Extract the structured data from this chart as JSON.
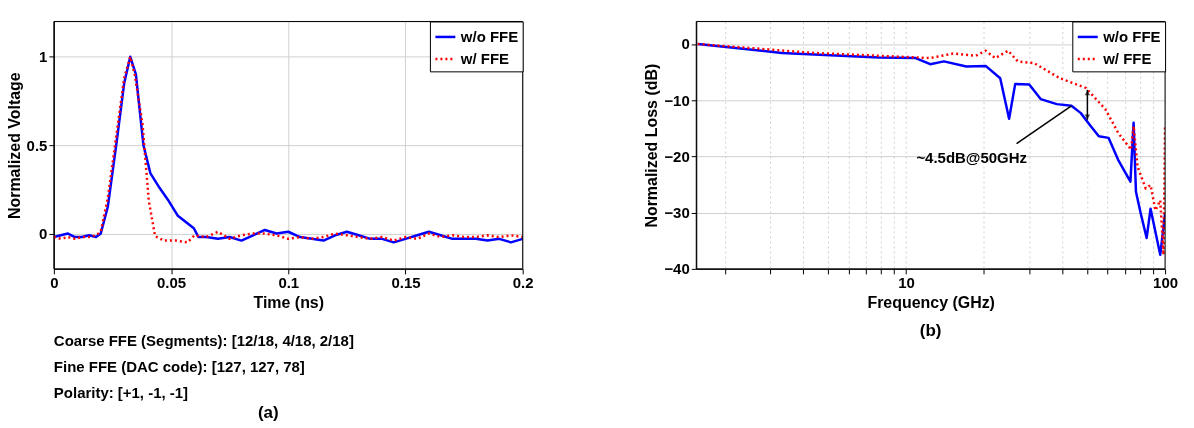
{
  "chart_data": [
    {
      "type": "line",
      "xlabel": "Time (ns)",
      "ylabel": "Normalized Voltage",
      "xlim": [
        0,
        0.2
      ],
      "ylim": [
        -0.2,
        1.2
      ],
      "xticks": [
        0,
        0.05,
        0.1,
        0.15,
        0.2
      ],
      "yticks": [
        0,
        0.5,
        1
      ],
      "grid": true,
      "legend": "top right",
      "annotations": [
        "Coarse FFE (Segments): [12/18, 4/18, 2/18]",
        "Fine FFE (DAC code): [127, 127, 78]",
        "Polarity: [+1, -1, -1]",
        "(a)"
      ],
      "series": [
        {
          "name": "w/o FFE",
          "color": "#0000ff",
          "line_style": "solid",
          "x": [
            0,
            0.003,
            0.006,
            0.009,
            0.012,
            0.015,
            0.018,
            0.02,
            0.023,
            0.0266,
            0.03,
            0.0326,
            0.035,
            0.0382,
            0.0412,
            0.045,
            0.0487,
            0.0529,
            0.0597,
            0.0617,
            0.065,
            0.07,
            0.075,
            0.08,
            0.085,
            0.09,
            0.095,
            0.1,
            0.105,
            0.11,
            0.115,
            0.12,
            0.125,
            0.13,
            0.135,
            0.14,
            0.145,
            0.15,
            0.155,
            0.16,
            0.165,
            0.17,
            0.175,
            0.18,
            0.185,
            0.19,
            0.195,
            0.2
          ],
          "values": [
            -0.02,
            -0.01,
            0.0,
            -0.02,
            -0.02,
            -0.01,
            -0.02,
            0.0,
            0.15,
            0.5,
            0.85,
            1.0,
            0.9,
            0.5,
            0.34,
            0.26,
            0.19,
            0.1,
            0.03,
            -0.02,
            -0.02,
            -0.03,
            -0.02,
            -0.04,
            -0.01,
            0.02,
            0.0,
            0.01,
            -0.02,
            -0.03,
            -0.04,
            -0.01,
            0.01,
            -0.01,
            -0.03,
            -0.03,
            -0.05,
            -0.03,
            -0.01,
            0.01,
            -0.01,
            -0.03,
            -0.03,
            -0.03,
            -0.04,
            -0.03,
            -0.05,
            -0.03
          ]
        },
        {
          "name": "w/ FFE",
          "color": "#ff0000",
          "line_style": "dotted",
          "x": [
            0,
            0.003,
            0.006,
            0.009,
            0.012,
            0.015,
            0.018,
            0.02,
            0.023,
            0.0266,
            0.03,
            0.0326,
            0.0345,
            0.0378,
            0.0405,
            0.0432,
            0.047,
            0.052,
            0.057,
            0.06,
            0.065,
            0.07,
            0.075,
            0.08,
            0.085,
            0.09,
            0.095,
            0.1,
            0.105,
            0.11,
            0.115,
            0.12,
            0.125,
            0.13,
            0.135,
            0.14,
            0.145,
            0.15,
            0.155,
            0.16,
            0.165,
            0.17,
            0.175,
            0.18,
            0.185,
            0.19,
            0.195,
            0.2
          ],
          "values": [
            -0.02,
            -0.03,
            -0.02,
            -0.03,
            -0.02,
            -0.02,
            -0.01,
            0.01,
            0.2,
            0.55,
            0.88,
            1.0,
            0.9,
            0.62,
            0.185,
            -0.015,
            -0.04,
            -0.04,
            -0.05,
            -0.01,
            -0.02,
            0.01,
            -0.03,
            -0.01,
            0.0,
            0.0,
            -0.01,
            -0.03,
            -0.02,
            -0.03,
            -0.02,
            0.0,
            -0.01,
            -0.02,
            -0.03,
            -0.02,
            -0.04,
            -0.02,
            -0.03,
            0.0,
            -0.02,
            -0.01,
            -0.02,
            -0.02,
            -0.01,
            -0.02,
            -0.01,
            -0.02
          ]
        }
      ]
    },
    {
      "type": "line",
      "xlabel": "Frequency (GHz)",
      "ylabel": "Normalized Loss (dB)",
      "log": "x",
      "xlim": [
        1.55,
        100
      ],
      "ylim": [
        -40,
        4
      ],
      "xticks": [
        {
          "value": 2,
          "label": null
        },
        {
          "value": 3,
          "label": null
        },
        {
          "value": 4,
          "label": null
        },
        {
          "value": 5,
          "label": null
        },
        {
          "value": 6,
          "label": null
        },
        {
          "value": 7,
          "label": null
        },
        {
          "value": 8,
          "label": null
        },
        {
          "value": 9,
          "label": null
        },
        10,
        {
          "value": 20,
          "label": null
        },
        {
          "value": 30,
          "label": null
        },
        {
          "value": 40,
          "label": null
        },
        {
          "value": 50,
          "label": null
        },
        {
          "value": 60,
          "label": null
        },
        {
          "value": 70,
          "label": null
        },
        {
          "value": 80,
          "label": null
        },
        {
          "value": 90,
          "label": null
        },
        100
      ],
      "yticks": [
        0,
        -10,
        -20,
        -30,
        -40
      ],
      "grid": true,
      "legend": "top right",
      "annotations": [
        {
          "text": "~4.5dB@50GHz",
          "x": 43.5,
          "y": -11
        },
        "(b)"
      ],
      "series": [
        {
          "name": "w/o FFE",
          "color": "#0000ff",
          "line_style": "solid",
          "x": [
            1.57,
            3.32,
            7.86,
            10.9,
            12.4,
            14,
            17.1,
            20.3,
            23.1,
            25,
            26.4,
            29.9,
            33.1,
            38.2,
            43.5,
            47.3,
            51.6,
            55.5,
            60.5,
            65.9,
            73.5,
            75.6,
            77.2,
            80.6,
            84.9,
            87.9,
            95.8,
            100
          ],
          "values": [
            0,
            -1.6,
            -2.4,
            -2.5,
            -3.6,
            -3.1,
            -4.0,
            -3.9,
            -6.1,
            -13.3,
            -7.1,
            -7.2,
            -9.8,
            -10.7,
            -11,
            -12.3,
            -14.6,
            -16.4,
            -16.7,
            -20.6,
            -24.5,
            -14.0,
            -26.3,
            -30.2,
            -34.5,
            -29.3,
            -37.5,
            -30.2
          ]
        },
        {
          "name": "w/ FFE",
          "color": "#ff0000",
          "line_style": "dotted",
          "x": [
            1.57,
            4.42,
            12.4,
            15.2,
            18.6,
            20.3,
            22.1,
            24.8,
            27,
            31.2,
            39.3,
            49.4,
            58.8,
            65.9,
            73.9,
            75.6,
            78.3,
            84.2,
            87.9,
            91.8,
            95.8,
            98.6,
            100
          ],
          "values": [
            0,
            -1.6,
            -2.5,
            -1.7,
            -2.1,
            -1.2,
            -2.5,
            -1.2,
            -3.1,
            -3.4,
            -6.1,
            -7.8,
            -11.6,
            -15.8,
            -18.8,
            -14.6,
            -21.8,
            -25.7,
            -25.1,
            -29.6,
            -27.8,
            -37.5,
            -14.6
          ]
        }
      ]
    }
  ]
}
